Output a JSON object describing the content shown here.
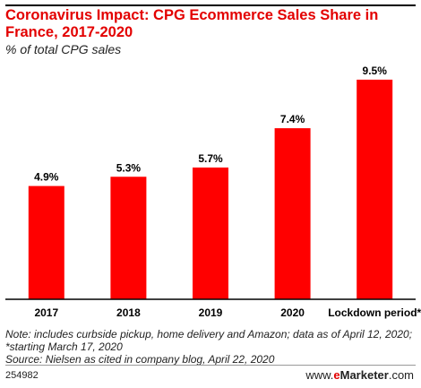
{
  "chart_data": {
    "type": "bar",
    "title": "Coronavirus Impact: CPG Ecommerce Sales Share in France, 2017-2020",
    "subtitle": "% of total CPG sales",
    "categories": [
      "2017",
      "2018",
      "2019",
      "2020",
      "Lockdown period*"
    ],
    "values": [
      4.9,
      5.3,
      5.7,
      7.4,
      9.5
    ],
    "value_labels": [
      "4.9%",
      "5.3%",
      "5.7%",
      "7.4%",
      "9.5%"
    ],
    "ylim": [
      0,
      10
    ],
    "grid": false,
    "bar_color": "#ff0000"
  },
  "notes": {
    "note": "Note: includes curbside pickup, home delivery and Amazon; data as of April 12, 2020; *starting March 17, 2020",
    "source": "Source: Nielsen as cited in company blog, April 22, 2020"
  },
  "footer": {
    "chart_id": "254982",
    "brand_prefix": "www.",
    "brand_e": "e",
    "brand_name": "Marketer",
    "brand_suffix": ".com"
  },
  "colors": {
    "title": "#e30000",
    "bars": "#ff0000",
    "axis": "#000000"
  }
}
